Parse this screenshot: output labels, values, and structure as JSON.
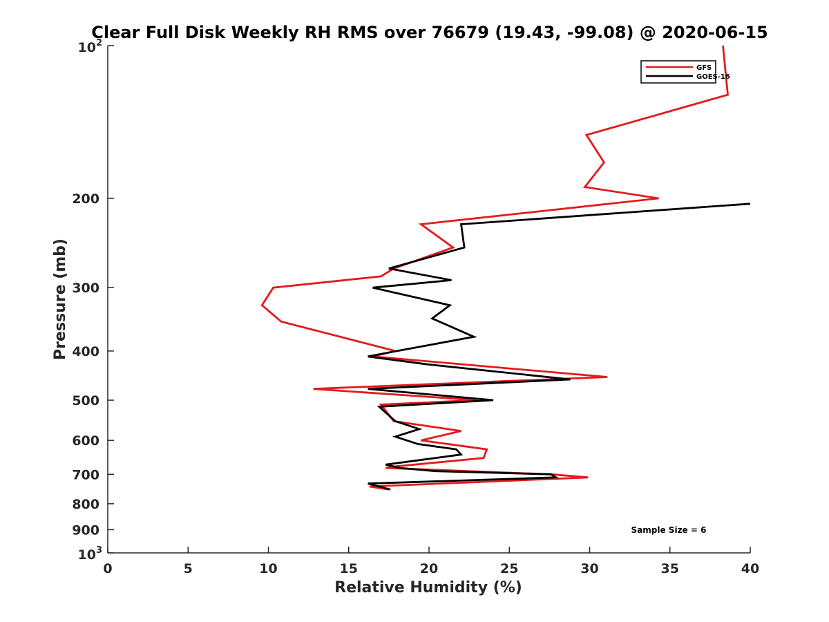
{
  "chart_data": {
    "type": "line",
    "title": "Clear Full Disk Weekly RH RMS over 76679 (19.43, -99.08) @ 2020-06-15",
    "xlabel": "Relative Humidity (%)",
    "ylabel": "Pressure (mb)",
    "xlim": [
      0,
      40
    ],
    "ylim": [
      100,
      1000
    ],
    "y_scale": "log",
    "y_reversed": true,
    "grid": false,
    "legend_position": "top-right",
    "x_ticks": [
      "0",
      "5",
      "10",
      "15",
      "20",
      "25",
      "30",
      "35",
      "40"
    ],
    "y_ticks": [
      {
        "value": 100,
        "base": "10",
        "exp": "2"
      },
      {
        "value": 200,
        "label": "200"
      },
      {
        "value": 300,
        "label": "300"
      },
      {
        "value": 400,
        "label": "400"
      },
      {
        "value": 500,
        "label": "500"
      },
      {
        "value": 600,
        "label": "600"
      },
      {
        "value": 700,
        "label": "700"
      },
      {
        "value": 800,
        "label": "800"
      },
      {
        "value": 900,
        "label": "900"
      },
      {
        "value": 1000,
        "base": "10",
        "exp": "3"
      }
    ],
    "series": [
      {
        "name": "GFS",
        "color": "#e41a1c",
        "points": [
          [
            38.3,
            100
          ],
          [
            38.6,
            125
          ],
          [
            29.8,
            150
          ],
          [
            30.9,
            170
          ],
          [
            29.7,
            190
          ],
          [
            34.3,
            200
          ],
          [
            19.5,
            225
          ],
          [
            21.5,
            250
          ],
          [
            17.8,
            275
          ],
          [
            17.0,
            285
          ],
          [
            10.3,
            300
          ],
          [
            9.6,
            325
          ],
          [
            10.8,
            350
          ],
          [
            17.9,
            400
          ],
          [
            16.5,
            410
          ],
          [
            31.1,
            450
          ],
          [
            12.8,
            475
          ],
          [
            23.0,
            500
          ],
          [
            17.0,
            510
          ],
          [
            17.8,
            550
          ],
          [
            22.0,
            575
          ],
          [
            19.5,
            600
          ],
          [
            23.6,
            625
          ],
          [
            23.4,
            650
          ],
          [
            18.0,
            675
          ],
          [
            17.3,
            680
          ],
          [
            27.6,
            700
          ],
          [
            29.9,
            710
          ],
          [
            16.3,
            740
          ],
          [
            17.5,
            750
          ]
        ]
      },
      {
        "name": "GOES-16",
        "color": "#000000",
        "points": [
          [
            40.0,
            205
          ],
          [
            22.0,
            225
          ],
          [
            22.2,
            250
          ],
          [
            17.5,
            275
          ],
          [
            21.4,
            290
          ],
          [
            16.5,
            300
          ],
          [
            21.3,
            325
          ],
          [
            20.2,
            345
          ],
          [
            22.8,
            375
          ],
          [
            18.0,
            400
          ],
          [
            16.2,
            410
          ],
          [
            19.9,
            425
          ],
          [
            28.8,
            455
          ],
          [
            16.2,
            475
          ],
          [
            24.0,
            500
          ],
          [
            16.9,
            515
          ],
          [
            17.9,
            550
          ],
          [
            19.4,
            570
          ],
          [
            17.9,
            590
          ],
          [
            19.3,
            610
          ],
          [
            21.7,
            625
          ],
          [
            22.0,
            640
          ],
          [
            17.3,
            670
          ],
          [
            18.2,
            680
          ],
          [
            20.4,
            690
          ],
          [
            27.6,
            700
          ],
          [
            27.9,
            710
          ],
          [
            16.2,
            730
          ],
          [
            17.6,
            750
          ]
        ]
      }
    ],
    "annotations": [
      "Sample Size = 6"
    ]
  }
}
